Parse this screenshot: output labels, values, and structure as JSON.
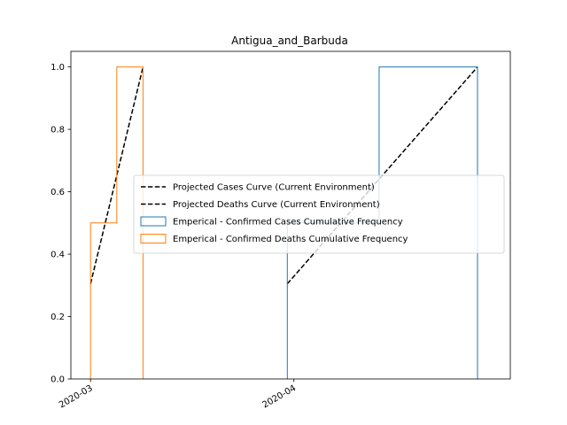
{
  "chart_data": {
    "type": "line",
    "title": "Antigua_and_Barbuda",
    "xlabel": "",
    "ylabel": "",
    "x_axis": {
      "type": "date",
      "range": [
        "2020-02-27",
        "2020-05-04"
      ],
      "ticks": [
        {
          "value": "2020-03-01",
          "label": "2020-03"
        },
        {
          "value": "2020-04-01",
          "label": "2020-04"
        }
      ]
    },
    "y_axis": {
      "range": [
        0,
        1.05
      ],
      "ticks": [
        {
          "value": 0.0,
          "label": "0.0"
        },
        {
          "value": 0.2,
          "label": "0.2"
        },
        {
          "value": 0.4,
          "label": "0.4"
        },
        {
          "value": 0.6,
          "label": "0.6"
        },
        {
          "value": 0.8,
          "label": "0.8"
        },
        {
          "value": 1.0,
          "label": "1.0"
        }
      ]
    },
    "grid": false,
    "legend_position": "center-right",
    "series": [
      {
        "name": "Projected Cases Curve (Current Environment)",
        "kind": "line",
        "style": "dashed",
        "color": "#000000",
        "points": [
          {
            "x": "2020-03-31",
            "y": 0.305
          },
          {
            "x": "2020-04-29",
            "y": 1.0
          }
        ]
      },
      {
        "name": "Projected Deaths Curve (Current Environment)",
        "kind": "line",
        "style": "dashed",
        "color": "#000000",
        "points": [
          {
            "x": "2020-03-01",
            "y": 0.305
          },
          {
            "x": "2020-03-09",
            "y": 1.0
          }
        ]
      },
      {
        "name": "Emperical - Confirmed Cases Cumulative Frequency",
        "kind": "step",
        "color": "#1f77b4",
        "points": [
          {
            "x": "2020-03-31",
            "y": 0.0
          },
          {
            "x": "2020-03-31",
            "y": 0.5
          },
          {
            "x": "2020-04-14",
            "y": 0.5
          },
          {
            "x": "2020-04-14",
            "y": 1.0
          },
          {
            "x": "2020-04-29",
            "y": 1.0
          },
          {
            "x": "2020-04-29",
            "y": 0.0
          }
        ]
      },
      {
        "name": "Emperical - Confirmed Deaths Cumulative Frequency",
        "kind": "step",
        "color": "#ff7f0e",
        "points": [
          {
            "x": "2020-03-01",
            "y": 0.0
          },
          {
            "x": "2020-03-01",
            "y": 0.5
          },
          {
            "x": "2020-03-05",
            "y": 0.5
          },
          {
            "x": "2020-03-05",
            "y": 1.0
          },
          {
            "x": "2020-03-09",
            "y": 1.0
          },
          {
            "x": "2020-03-09",
            "y": 0.0
          }
        ]
      }
    ]
  }
}
